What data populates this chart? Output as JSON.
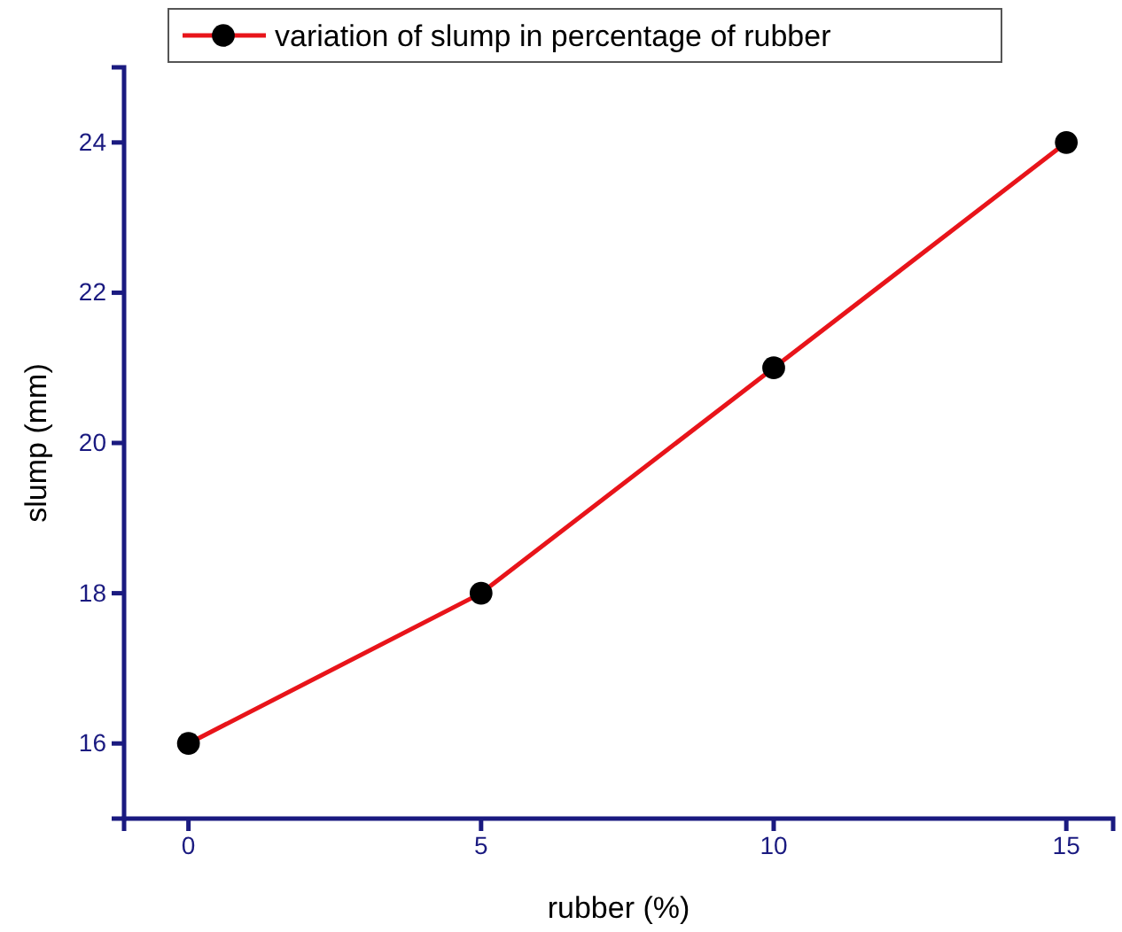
{
  "chart_data": {
    "type": "line",
    "xlabel": "rubber (%)",
    "ylabel": "slump (mm)",
    "x": [
      0,
      5,
      10,
      15
    ],
    "series": [
      {
        "name": "variation of slump in percentage of rubber",
        "color": "#e8141a",
        "values": [
          16,
          18,
          21,
          24
        ]
      }
    ],
    "xlim": [
      -1.1,
      15.8
    ],
    "xticks": [
      0,
      5,
      10,
      15
    ],
    "ylim": [
      15,
      25
    ],
    "yticks": [
      16,
      18,
      20,
      22,
      24
    ],
    "marker": "circle",
    "line_style": "solid",
    "legend": "top",
    "grid": false
  }
}
